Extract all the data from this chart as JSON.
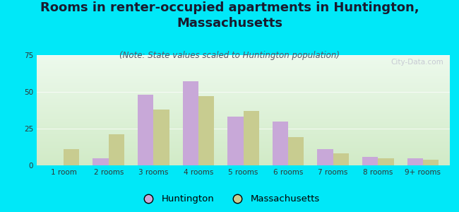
{
  "title": "Rooms in renter-occupied apartments in Huntington,\nMassachusetts",
  "subtitle": "(Note: State values scaled to Huntington population)",
  "categories": [
    "1 room",
    "2 rooms",
    "3 rooms",
    "4 rooms",
    "5 rooms",
    "6 rooms",
    "7 rooms",
    "8 rooms",
    "9+ rooms"
  ],
  "huntington_values": [
    0,
    5,
    48,
    57,
    33,
    30,
    11,
    6,
    5
  ],
  "massachusetts_values": [
    11,
    21,
    38,
    47,
    37,
    19,
    8,
    5,
    4
  ],
  "huntington_color": "#c8a8d8",
  "massachusetts_color": "#c8cc90",
  "background_color": "#00e8f8",
  "ylim": [
    0,
    75
  ],
  "yticks": [
    0,
    25,
    50,
    75
  ],
  "bar_width": 0.35,
  "title_fontsize": 13,
  "subtitle_fontsize": 8.5,
  "tick_fontsize": 7.5,
  "legend_fontsize": 9.5,
  "watermark": "City-Data.com"
}
